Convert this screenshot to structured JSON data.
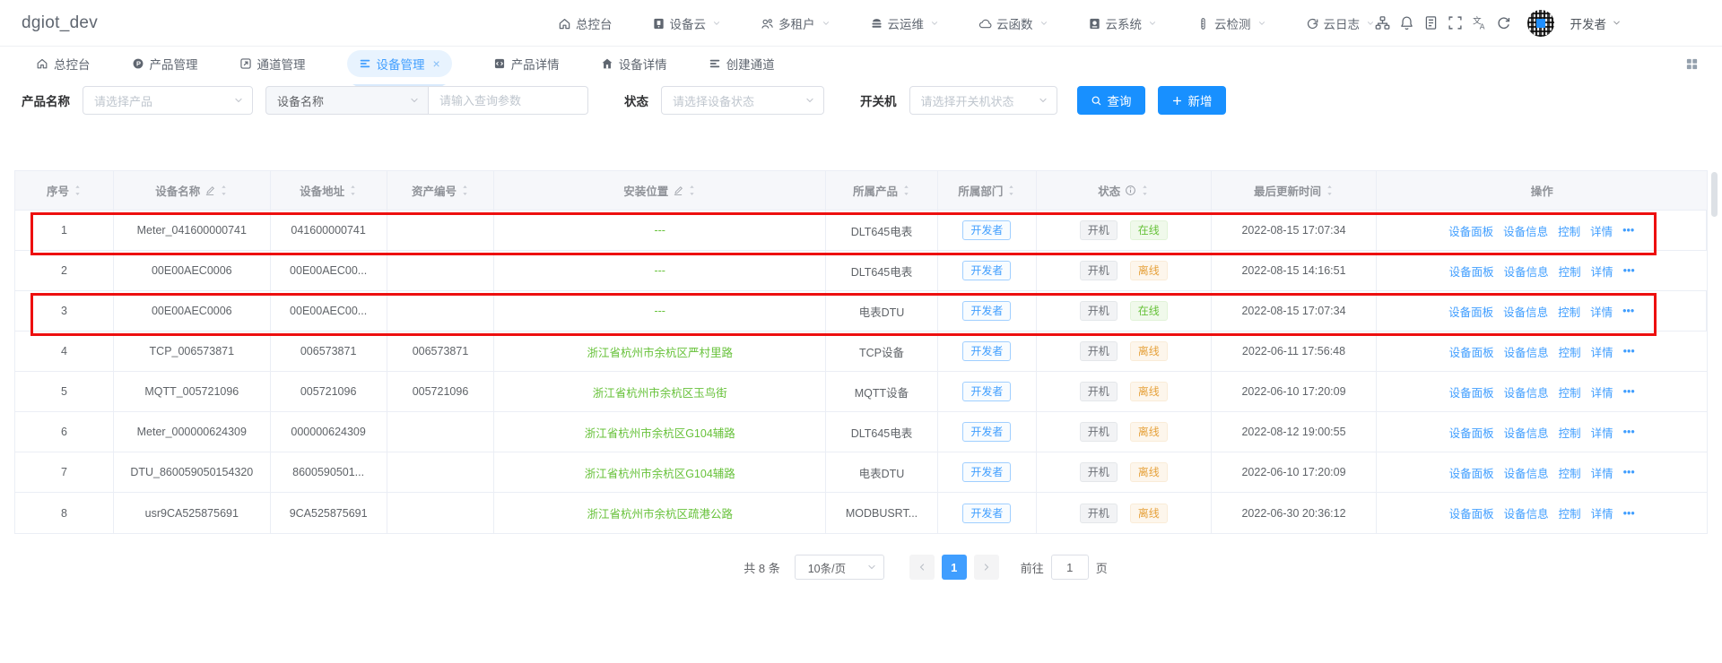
{
  "brand": "dgiot_dev",
  "navbar": {
    "menus": [
      {
        "label": "总控台",
        "icon": "home-icon",
        "dropdown": false
      },
      {
        "label": "设备云",
        "icon": "device-cloud-icon",
        "dropdown": true
      },
      {
        "label": "多租户",
        "icon": "tenants-icon",
        "dropdown": true
      },
      {
        "label": "云运维",
        "icon": "cloud-ops-icon",
        "dropdown": true
      },
      {
        "label": "云函数",
        "icon": "cloud-function-icon",
        "dropdown": true
      },
      {
        "label": "云系统",
        "icon": "cloud-system-icon",
        "dropdown": true
      },
      {
        "label": "云检测",
        "icon": "cloud-detect-icon",
        "dropdown": true
      },
      {
        "label": "云日志",
        "icon": "cloud-log-icon",
        "dropdown": true
      }
    ],
    "tools": [
      "sitemap-icon",
      "bell-icon",
      "document-icon",
      "fullscreen-icon",
      "translate-icon",
      "refresh-icon"
    ],
    "user": {
      "name": "开发者"
    }
  },
  "tabs": [
    {
      "label": "总控台",
      "icon": "home-icon",
      "active": false,
      "closable": false
    },
    {
      "label": "产品管理",
      "icon": "product-icon",
      "active": false,
      "closable": false
    },
    {
      "label": "通道管理",
      "icon": "channel-icon",
      "active": false,
      "closable": false
    },
    {
      "label": "设备管理",
      "icon": "device-list-icon",
      "active": true,
      "closable": true
    },
    {
      "label": "产品详情",
      "icon": "product-detail-icon",
      "active": false,
      "closable": false
    },
    {
      "label": "设备详情",
      "icon": "device-detail-icon",
      "active": false,
      "closable": false
    },
    {
      "label": "创建通道",
      "icon": "create-channel-icon",
      "active": false,
      "closable": false
    }
  ],
  "filters": {
    "product_label": "产品名称",
    "product_placeholder": "请选择产品",
    "name_select_value": "设备名称",
    "query_placeholder": "请输入查询参数",
    "status_label": "状态",
    "status_placeholder": "请选择设备状态",
    "switch_label": "开关机",
    "switch_placeholder": "请选择开关机状态",
    "search_button": "查询",
    "add_button": "新增"
  },
  "table": {
    "columns": [
      {
        "label": "序号",
        "sort": true
      },
      {
        "label": "设备名称",
        "sort": true,
        "edit": true
      },
      {
        "label": "设备地址",
        "sort": true
      },
      {
        "label": "资产编号",
        "sort": true
      },
      {
        "label": "安装位置",
        "sort": true,
        "edit": true
      },
      {
        "label": "所属产品",
        "sort": true
      },
      {
        "label": "所属部门",
        "sort": true
      },
      {
        "label": "状态",
        "sort": true,
        "info": true
      },
      {
        "label": "最后更新时间",
        "sort": true
      },
      {
        "label": "操作"
      }
    ],
    "actions": [
      "设备面板",
      "设备信息",
      "控制",
      "详情"
    ],
    "actions_more": "•••",
    "rows": [
      {
        "index": "1",
        "name": "Meter_041600000741",
        "address": "041600000741",
        "asset": "",
        "location": "---",
        "product": "DLT645电表",
        "dept": "开发者",
        "power": "开机",
        "online": "在线",
        "online_type": "success",
        "updated": "2022-08-15 17:07:34",
        "highlighted": true
      },
      {
        "index": "2",
        "name": "00E00AEC0006",
        "address": "00E00AEC00...",
        "asset": "",
        "location": "---",
        "product": "DLT645电表",
        "dept": "开发者",
        "power": "开机",
        "online": "离线",
        "online_type": "warning",
        "updated": "2022-08-15 14:16:51",
        "highlighted": false
      },
      {
        "index": "3",
        "name": "00E00AEC0006",
        "address": "00E00AEC00...",
        "asset": "",
        "location": "---",
        "product": "电表DTU",
        "dept": "开发者",
        "power": "开机",
        "online": "在线",
        "online_type": "success",
        "updated": "2022-08-15 17:07:34",
        "highlighted": true
      },
      {
        "index": "4",
        "name": "TCP_006573871",
        "address": "006573871",
        "asset": "006573871",
        "location": "浙江省杭州市余杭区严村里路",
        "product": "TCP设备",
        "dept": "开发者",
        "power": "开机",
        "online": "离线",
        "online_type": "warning",
        "updated": "2022-06-11 17:56:48",
        "highlighted": false
      },
      {
        "index": "5",
        "name": "MQTT_005721096",
        "address": "005721096",
        "asset": "005721096",
        "location": "浙江省杭州市余杭区玉鸟街",
        "product": "MQTT设备",
        "dept": "开发者",
        "power": "开机",
        "online": "离线",
        "online_type": "warning",
        "updated": "2022-06-10 17:20:09",
        "highlighted": false
      },
      {
        "index": "6",
        "name": "Meter_000000624309",
        "address": "000000624309",
        "asset": "",
        "location": "浙江省杭州市余杭区G104辅路",
        "product": "DLT645电表",
        "dept": "开发者",
        "power": "开机",
        "online": "离线",
        "online_type": "warning",
        "updated": "2022-08-12 19:00:55",
        "highlighted": false
      },
      {
        "index": "7",
        "name": "DTU_860059050154320",
        "address": "8600590501...",
        "asset": "",
        "location": "浙江省杭州市余杭区G104辅路",
        "product": "电表DTU",
        "dept": "开发者",
        "power": "开机",
        "online": "离线",
        "online_type": "warning",
        "updated": "2022-06-10 17:20:09",
        "highlighted": false
      },
      {
        "index": "8",
        "name": "usr9CA525875691",
        "address": "9CA525875691",
        "asset": "",
        "location": "浙江省杭州市余杭区疏港公路",
        "product": "MODBUSRT...",
        "dept": "开发者",
        "power": "开机",
        "online": "离线",
        "online_type": "warning",
        "updated": "2022-06-30 20:36:12",
        "highlighted": false
      }
    ]
  },
  "pagination": {
    "total_label": "共 8 条",
    "page_size": "10条/页",
    "current_page": "1",
    "goto_label": "前往",
    "goto_value": "1",
    "unit_label": "页"
  },
  "colors": {
    "primary": "#409eff",
    "button_blue": "#1890ff",
    "success_green": "#67c23a",
    "warning_orange": "#e6a23c",
    "annotation_red": "#ed0f0f",
    "header_text": "#909399",
    "body_text": "#606266",
    "table_border": "#ebeef5",
    "header_bg": "#f6f7fa"
  }
}
